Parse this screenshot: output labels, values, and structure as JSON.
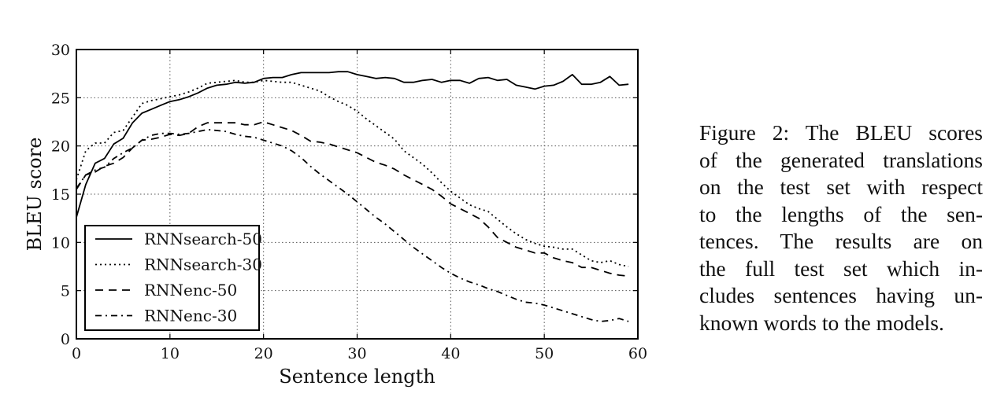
{
  "chart_data": {
    "type": "line",
    "xlabel": "Sentence length",
    "ylabel": "BLEU score",
    "xlim": [
      0,
      60
    ],
    "ylim": [
      0,
      30
    ],
    "xticks": [
      "0",
      "10",
      "20",
      "30",
      "40",
      "50",
      "60"
    ],
    "yticks": [
      "0",
      "5",
      "10",
      "15",
      "20",
      "25",
      "30"
    ],
    "grid": true,
    "legend_position": "lower-left",
    "x": [
      0,
      1,
      2,
      3,
      4,
      5,
      6,
      7,
      8,
      9,
      10,
      11,
      12,
      13,
      14,
      15,
      16,
      17,
      18,
      19,
      20,
      21,
      22,
      23,
      24,
      25,
      26,
      27,
      28,
      29,
      30,
      31,
      32,
      33,
      34,
      35,
      36,
      37,
      38,
      39,
      40,
      41,
      42,
      43,
      44,
      45,
      46,
      47,
      48,
      49,
      50,
      51,
      52,
      53,
      54,
      55,
      56,
      57,
      58,
      59
    ],
    "series": [
      {
        "name": "RNNsearch-50",
        "style": "solid",
        "values": [
          12.6,
          16.0,
          18.2,
          18.7,
          20.2,
          20.8,
          22.4,
          23.4,
          23.8,
          24.2,
          24.6,
          24.8,
          25.1,
          25.5,
          26.0,
          26.3,
          26.4,
          26.6,
          26.5,
          26.6,
          27.0,
          27.1,
          27.1,
          27.4,
          27.6,
          27.6,
          27.6,
          27.6,
          27.7,
          27.7,
          27.4,
          27.2,
          27.0,
          27.1,
          27.0,
          26.6,
          26.6,
          26.8,
          26.9,
          26.6,
          26.8,
          26.8,
          26.5,
          27.0,
          27.1,
          26.8,
          26.9,
          26.3,
          26.1,
          25.9,
          26.2,
          26.3,
          26.7,
          27.4,
          26.4,
          26.4,
          26.6,
          27.2,
          26.3,
          26.4
        ]
      },
      {
        "name": "RNNsearch-30",
        "style": "dotted",
        "values": [
          16.5,
          19.5,
          20.3,
          20.3,
          21.4,
          21.6,
          23.0,
          24.4,
          24.7,
          24.9,
          25.1,
          25.3,
          25.6,
          26.0,
          26.5,
          26.6,
          26.7,
          26.8,
          26.6,
          26.6,
          26.8,
          26.7,
          26.6,
          26.6,
          26.3,
          26.0,
          25.7,
          25.1,
          24.6,
          24.2,
          23.6,
          22.8,
          22.1,
          21.4,
          20.7,
          19.5,
          18.8,
          18.1,
          17.2,
          16.2,
          15.3,
          14.6,
          13.9,
          13.5,
          13.2,
          12.4,
          11.6,
          10.9,
          10.3,
          9.9,
          9.6,
          9.5,
          9.3,
          9.3,
          8.7,
          8.1,
          7.9,
          8.1,
          7.7,
          7.5
        ]
      },
      {
        "name": "RNNenc-50",
        "style": "dashed",
        "values": [
          15.5,
          17.0,
          17.3,
          17.9,
          18.2,
          18.8,
          19.8,
          20.6,
          20.7,
          20.9,
          21.2,
          21.1,
          21.3,
          22.0,
          22.4,
          22.4,
          22.4,
          22.4,
          22.2,
          22.2,
          22.5,
          22.2,
          21.9,
          21.6,
          21.1,
          20.5,
          20.4,
          20.2,
          19.9,
          19.6,
          19.3,
          18.8,
          18.3,
          18.0,
          17.6,
          17.0,
          16.5,
          16.0,
          15.5,
          14.8,
          14.0,
          13.5,
          13.0,
          12.5,
          11.6,
          10.5,
          10.0,
          9.5,
          9.2,
          8.9,
          8.9,
          8.4,
          8.1,
          7.9,
          7.4,
          7.4,
          7.1,
          6.8,
          6.6,
          6.5
        ]
      },
      {
        "name": "RNNenc-30",
        "style": "dashdot",
        "values": [
          15.6,
          17.0,
          17.5,
          17.8,
          18.7,
          19.3,
          19.8,
          20.6,
          21.1,
          21.3,
          21.3,
          21.2,
          21.3,
          21.5,
          21.7,
          21.6,
          21.5,
          21.2,
          21.0,
          20.9,
          20.6,
          20.3,
          20.0,
          19.5,
          18.8,
          17.9,
          17.1,
          16.4,
          15.7,
          15.0,
          14.2,
          13.4,
          12.6,
          11.9,
          11.1,
          10.3,
          9.5,
          8.8,
          8.1,
          7.4,
          6.8,
          6.3,
          5.9,
          5.6,
          5.2,
          4.9,
          4.5,
          4.1,
          3.8,
          3.7,
          3.5,
          3.2,
          2.9,
          2.6,
          2.3,
          2.0,
          1.8,
          1.9,
          2.1,
          1.8
        ]
      }
    ]
  },
  "caption": {
    "lines": [
      "Figure 2:  The BLEU scores",
      "of the generated translations",
      "on the test set with respect",
      "to the lengths of the sen-",
      "tences.  The results are on",
      "the full test set which in-",
      "cludes sentences having un-",
      "known words to the models."
    ]
  }
}
